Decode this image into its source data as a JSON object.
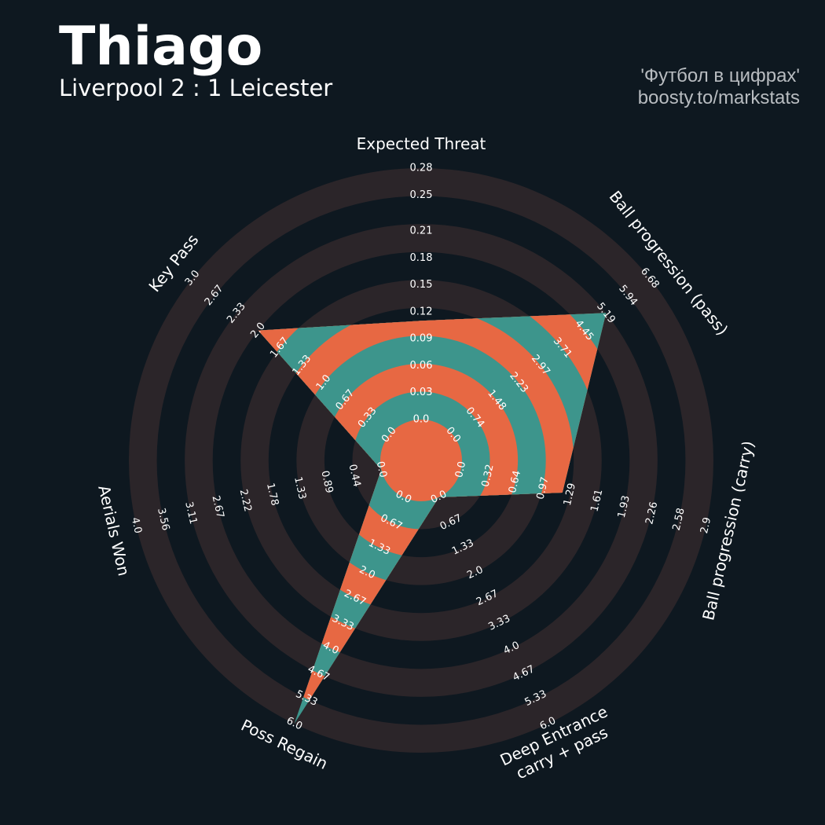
{
  "chart_data": {
    "type": "radar",
    "title": "Thiago",
    "subtitle": "Liverpool 2 : 1 Leicester",
    "credits": [
      "'Футбол в цифрах'",
      "boosty.to/markstats"
    ],
    "params": [
      "Expected Threat",
      "Ball progression (pass)",
      "Ball progression (carry)",
      "Deep Entrance\ncarry + pass",
      "Poss Regain",
      "Aerials Won",
      "Key Pass"
    ],
    "values": [
      0.11,
      5.2,
      1.2,
      0,
      6,
      0,
      2
    ],
    "ranges": [
      [
        0,
        0.28
      ],
      [
        0,
        6.68
      ],
      [
        0,
        2.9
      ],
      [
        0,
        6
      ],
      [
        0,
        6
      ],
      [
        0,
        4
      ],
      [
        0,
        3
      ]
    ],
    "ticks": [
      [
        {
          "value": 0,
          "label": "0.0"
        },
        0.03,
        0.06,
        0.09,
        0.12,
        0.15,
        0.18,
        0.21,
        0.25,
        0.28
      ],
      [
        {
          "value": 0,
          "label": "0.0"
        },
        0.74,
        1.48,
        2.23,
        2.97,
        3.71,
        4.45,
        5.19,
        5.94,
        6.68
      ],
      [
        {
          "value": 0,
          "label": "0.0"
        },
        0.32,
        0.64,
        0.97,
        1.29,
        1.61,
        1.93,
        2.26,
        2.58,
        2.9
      ],
      [
        {
          "value": 0,
          "label": "0.0"
        },
        0.67,
        1.33,
        {
          "value": 2,
          "label": "2.0"
        },
        2.67,
        3.33,
        {
          "value": 4,
          "label": "4.0"
        },
        4.67,
        5.33,
        {
          "value": 6,
          "label": "6.0"
        }
      ],
      [
        {
          "value": 0,
          "label": "0.0"
        },
        0.67,
        1.33,
        {
          "value": 2,
          "label": "2.0"
        },
        2.67,
        3.33,
        {
          "value": 4,
          "label": "4.0"
        },
        4.67,
        5.33,
        {
          "value": 6,
          "label": "6.0"
        }
      ],
      [
        {
          "value": 0,
          "label": "0.0"
        },
        0.44,
        0.89,
        1.33,
        1.78,
        2.22,
        2.67,
        3.11,
        3.56,
        {
          "value": 4,
          "label": "4.0"
        }
      ],
      [
        {
          "value": 0,
          "label": "0.0"
        },
        0.33,
        0.67,
        {
          "value": 1,
          "label": "1.0"
        },
        1.33,
        1.67,
        {
          "value": 2,
          "label": "2.0"
        },
        2.33,
        2.67,
        {
          "value": 3,
          "label": "3.0"
        }
      ]
    ],
    "color": "#3d958c",
    "alt_color": "#e76843",
    "ring_colors": [
      "#2b2529",
      "#0e1820"
    ]
  }
}
